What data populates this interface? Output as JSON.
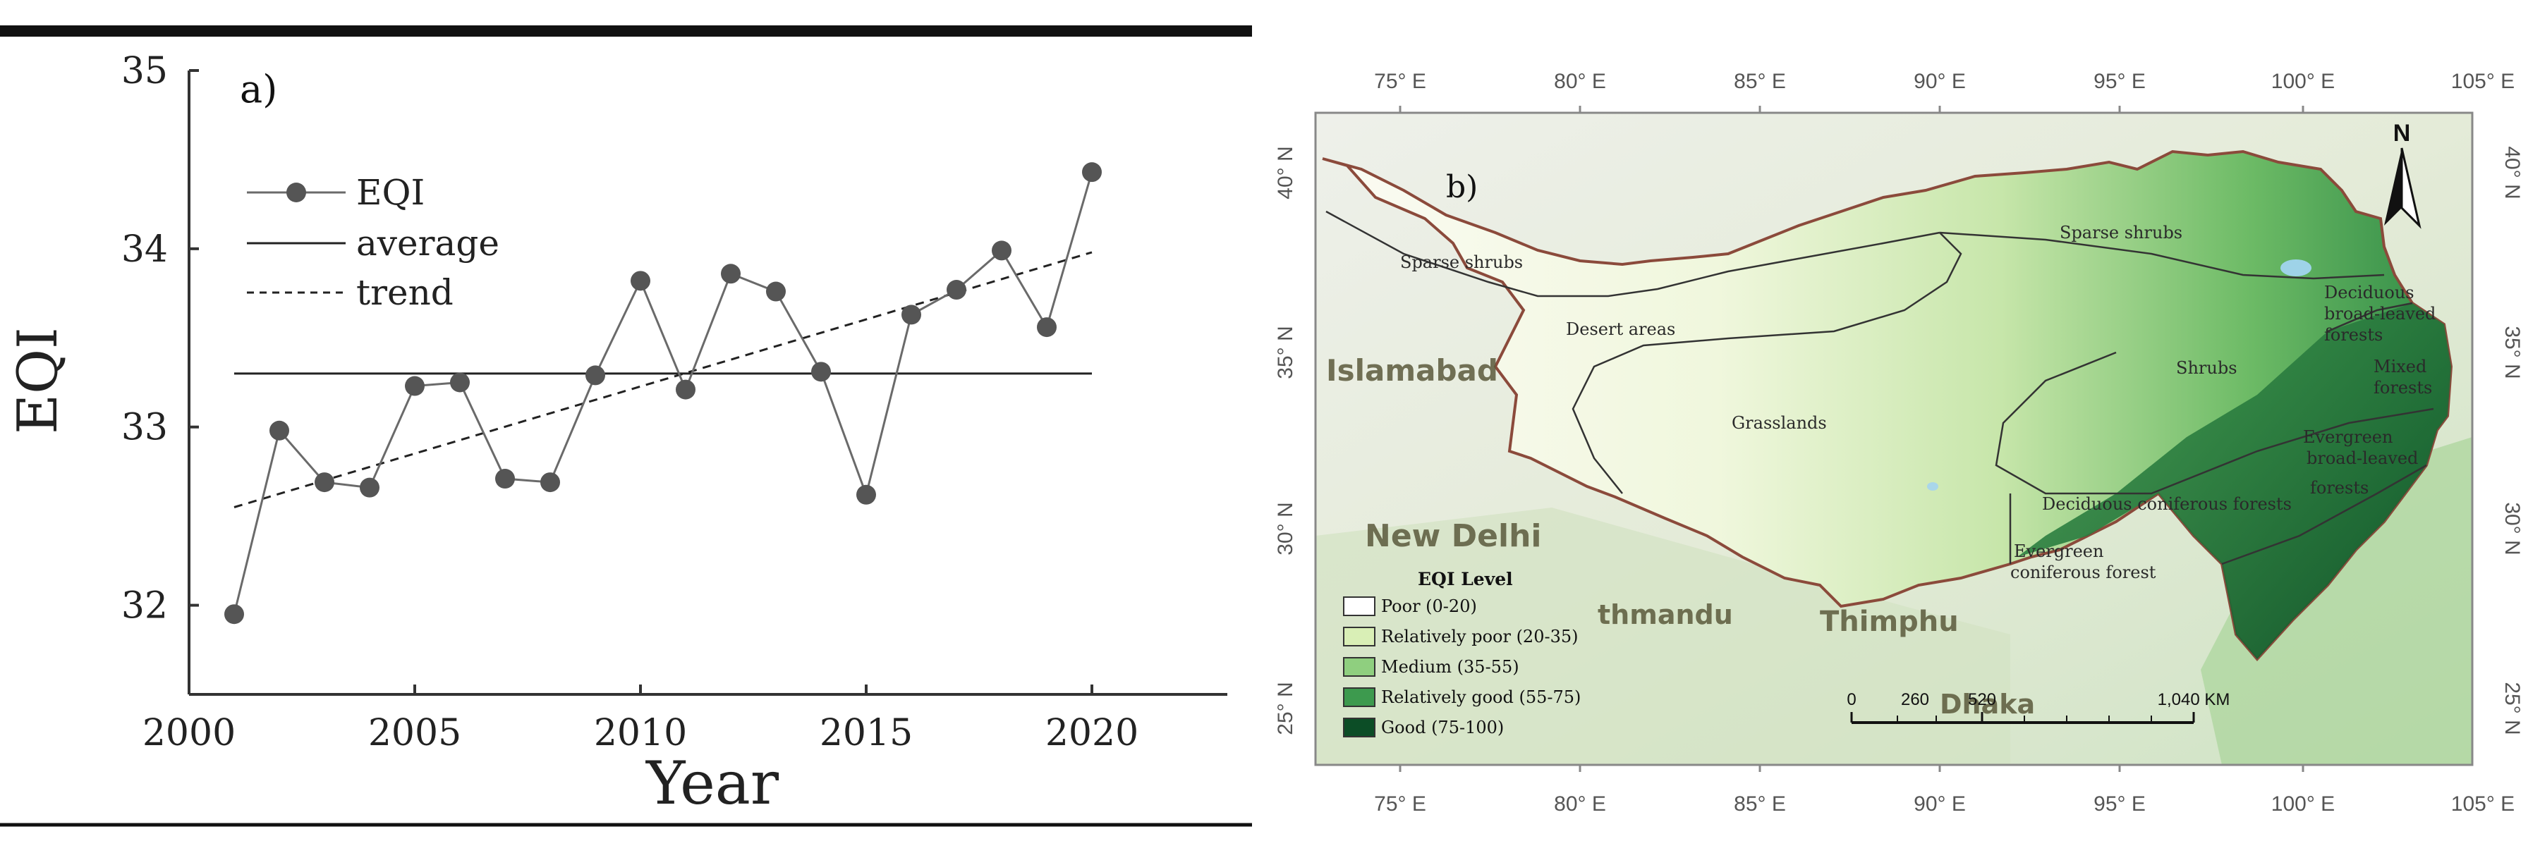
{
  "chart_data": {
    "type": "line",
    "panel_label": "a)",
    "xlabel": "Year",
    "ylabel": "EQI",
    "xlim": [
      2000,
      2023
    ],
    "ylim": [
      31.5,
      35
    ],
    "x_ticks": [
      "2000",
      "2005",
      "2010",
      "2015",
      "2020"
    ],
    "y_ticks": [
      "32",
      "33",
      "34",
      "35"
    ],
    "legend_placement": "upper-left",
    "series": [
      {
        "name": "EQI",
        "style": "line-with-markers",
        "color": "#6a6a6a",
        "x": [
          2001,
          2002,
          2003,
          2004,
          2005,
          2006,
          2007,
          2008,
          2009,
          2010,
          2011,
          2012,
          2013,
          2014,
          2015,
          2016,
          2017,
          2018,
          2019,
          2020
        ],
        "values": [
          31.95,
          32.98,
          32.69,
          32.66,
          33.23,
          33.25,
          32.71,
          32.69,
          33.29,
          33.82,
          33.21,
          33.86,
          33.76,
          33.31,
          32.62,
          33.63,
          33.77,
          33.99,
          33.56,
          34.43
        ]
      },
      {
        "name": "average",
        "style": "solid-line",
        "color": "#222222",
        "x": [
          2001,
          2020
        ],
        "values": [
          33.3,
          33.3
        ]
      },
      {
        "name": "trend",
        "style": "dashed-line",
        "color": "#222222",
        "x": [
          2001,
          2020
        ],
        "values": [
          32.55,
          33.98
        ]
      }
    ]
  },
  "map": {
    "panel_label": "b)",
    "north_label": "N",
    "top_lon_labels": [
      "75° E",
      "80° E",
      "85° E",
      "90° E",
      "95° E",
      "100° E",
      "105° E"
    ],
    "bottom_lon_labels": [
      "75° E",
      "80° E",
      "85° E",
      "90° E",
      "95° E",
      "100° E",
      "105° E"
    ],
    "left_lat_labels": [
      "40° N",
      "35° N",
      "30° N",
      "25° N"
    ],
    "right_lat_labels": [
      "40° N",
      "35° N",
      "30° N",
      "25° N"
    ],
    "cities": [
      "Islamabad",
      "New Delhi",
      "thmandu",
      "Thimphu",
      "Dhaka"
    ],
    "vegetation_labels": {
      "sparse_shrubs_w": "Sparse shrubs",
      "sparse_shrubs_n": "Sparse shrubs",
      "desert": "Desert areas",
      "grasslands": "Grasslands",
      "shrubs": "Shrubs",
      "deciduous_broad_1": "Deciduous",
      "deciduous_broad_2": "broad-leaved",
      "deciduous_broad_3": "forests",
      "mixed_1": "Mixed",
      "mixed_2": "forests",
      "evergreen_broad_1": "Evergreen",
      "evergreen_broad_2": "broad-leaved",
      "evergreen_broad_3": "forests",
      "deciduous_coniferous": "Deciduous coniferous forests",
      "evergreen_coniferous_1": "Evergreen",
      "evergreen_coniferous_2": "coniferous forest"
    },
    "legend": {
      "title": "EQI Level",
      "items": [
        {
          "label": "Poor (0-20)",
          "color": "#ffffff"
        },
        {
          "label": "Relatively poor (20-35)",
          "color": "#d9efb6"
        },
        {
          "label": "Medium (35-55)",
          "color": "#8fcf7f"
        },
        {
          "label": "Relatively good (55-75)",
          "color": "#3d9a4e"
        },
        {
          "label": "Good (75-100)",
          "color": "#0c4d26"
        }
      ]
    },
    "scale_bar": {
      "labels": [
        "0",
        "260",
        "520",
        "1,040 KM"
      ]
    }
  }
}
